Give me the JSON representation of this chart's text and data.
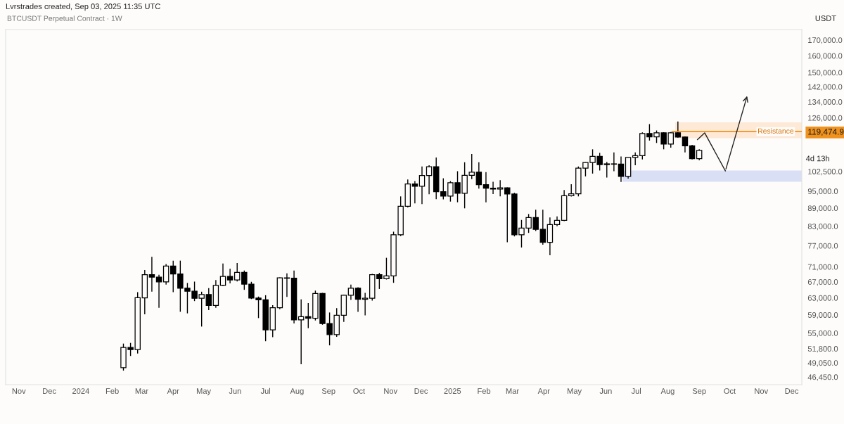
{
  "chart_data": {
    "type": "candlestick",
    "title": "BTCUSDT Perpetual Contract · 1W",
    "ylabel": "USDT",
    "annotations": [
      "Lvrstrades created, Sep 03, 2025 11:35 UTC",
      "4d 13h"
    ],
    "color": "#000000",
    "x": [
      "2024-02-12",
      "2024-02-19",
      "2024-02-26",
      "2024-03-04",
      "2024-03-11",
      "2024-03-18",
      "2024-03-25",
      "2024-04-01",
      "2024-04-08",
      "2024-04-15",
      "2024-04-22",
      "2024-04-29",
      "2024-05-06",
      "2024-05-13",
      "2024-05-20",
      "2024-05-27",
      "2024-06-03",
      "2024-06-10",
      "2024-06-17",
      "2024-06-24",
      "2024-07-01",
      "2024-07-08",
      "2024-07-15",
      "2024-07-22",
      "2024-07-29",
      "2024-08-05",
      "2024-08-12",
      "2024-08-19",
      "2024-08-26",
      "2024-09-02",
      "2024-09-09",
      "2024-09-16",
      "2024-09-23",
      "2024-09-30",
      "2024-10-07",
      "2024-10-14",
      "2024-10-21",
      "2024-10-28",
      "2024-11-04",
      "2024-11-11",
      "2024-11-18",
      "2024-11-25",
      "2024-12-02",
      "2024-12-09",
      "2024-12-16",
      "2024-12-23",
      "2024-12-30",
      "2025-01-06",
      "2025-01-13",
      "2025-01-20",
      "2025-01-27",
      "2025-02-03",
      "2025-02-10",
      "2025-02-17",
      "2025-02-24",
      "2025-03-03",
      "2025-03-10",
      "2025-03-17",
      "2025-03-24",
      "2025-03-31",
      "2025-04-07",
      "2025-04-14",
      "2025-04-21",
      "2025-04-28",
      "2025-05-05",
      "2025-05-12",
      "2025-05-19",
      "2025-05-26",
      "2025-06-02",
      "2025-06-09",
      "2025-06-16",
      "2025-06-23",
      "2025-06-30",
      "2025-07-07",
      "2025-07-14",
      "2025-07-21",
      "2025-07-28",
      "2025-08-04",
      "2025-08-11",
      "2025-08-18",
      "2025-08-25",
      "2025-09-01"
    ],
    "ohlc": [
      [
        48160,
        52820,
        47600,
        52030
      ],
      [
        52030,
        52960,
        50360,
        51620
      ],
      [
        51620,
        64380,
        50850,
        63020
      ],
      [
        62990,
        70100,
        59120,
        68850
      ],
      [
        68850,
        73750,
        64500,
        68220
      ],
      [
        68220,
        68850,
        60640,
        67010
      ],
      [
        67010,
        71770,
        66290,
        71190
      ],
      [
        71190,
        72700,
        64380,
        69040
      ],
      [
        69040,
        72700,
        59700,
        65390
      ],
      [
        65390,
        66710,
        59340,
        64610
      ],
      [
        64610,
        67060,
        62210,
        62880
      ],
      [
        62880,
        64500,
        56400,
        63820
      ],
      [
        63820,
        65390,
        60090,
        61180
      ],
      [
        61180,
        67480,
        60640,
        66070
      ],
      [
        66070,
        71920,
        65900,
        68420
      ],
      [
        68420,
        70470,
        66590,
        67480
      ],
      [
        67480,
        72030,
        67100,
        69480
      ],
      [
        69480,
        69980,
        64970,
        66410
      ],
      [
        66410,
        67010,
        62700,
        62930
      ],
      [
        62930,
        63300,
        58270,
        62540
      ],
      [
        62540,
        63630,
        53310,
        55690
      ],
      [
        55690,
        61250,
        54140,
        60640
      ],
      [
        60640,
        68150,
        60300,
        68030
      ],
      [
        68030,
        69230,
        63210,
        67930
      ],
      [
        67930,
        69980,
        57060,
        57860
      ],
      [
        57860,
        62610,
        48780,
        58590
      ],
      [
        58590,
        61760,
        56030,
        58220
      ],
      [
        58220,
        64770,
        57740,
        64040
      ],
      [
        64040,
        64200,
        56800,
        57060
      ],
      [
        57060,
        59540,
        52460,
        54690
      ],
      [
        54690,
        60530,
        54200,
        58900
      ],
      [
        58900,
        63740,
        57430,
        63620
      ],
      [
        63620,
        66290,
        62480,
        65390
      ],
      [
        65390,
        65600,
        59700,
        62650
      ],
      [
        62650,
        64220,
        58900,
        62900
      ],
      [
        62900,
        69080,
        62310,
        68850
      ],
      [
        68850,
        69340,
        65190,
        67790
      ],
      [
        67790,
        73500,
        67600,
        68550
      ],
      [
        68550,
        81270,
        66750,
        80310
      ],
      [
        80310,
        93100,
        79900,
        89630
      ],
      [
        89630,
        99390,
        89230,
        97680
      ],
      [
        97680,
        98730,
        90610,
        96790
      ],
      [
        96790,
        104460,
        90370,
        100910
      ],
      [
        100910,
        104980,
        93870,
        104370
      ],
      [
        104370,
        108140,
        92110,
        94790
      ],
      [
        94790,
        99820,
        92040,
        93180
      ],
      [
        93180,
        98730,
        91260,
        98130
      ],
      [
        98130,
        102580,
        91010,
        94210
      ],
      [
        94210,
        106180,
        88910,
        100980
      ],
      [
        100980,
        109620,
        99480,
        102210
      ],
      [
        102210,
        106180,
        95940,
        97410
      ],
      [
        97410,
        102210,
        91010,
        96100
      ],
      [
        96100,
        98470,
        93940,
        95750
      ],
      [
        95750,
        99120,
        93100,
        96250
      ],
      [
        96250,
        96400,
        78020,
        93940
      ],
      [
        93940,
        94400,
        79810,
        80310
      ],
      [
        80310,
        85030,
        76470,
        82380
      ],
      [
        82380,
        86990,
        80900,
        85820
      ],
      [
        85820,
        88420,
        81490,
        82010
      ],
      [
        82010,
        88420,
        77310,
        78020
      ],
      [
        78020,
        85820,
        74220,
        83510
      ],
      [
        83510,
        86190,
        82970,
        84880
      ],
      [
        84880,
        95420,
        84650,
        93360
      ],
      [
        93360,
        97590,
        93040,
        94020
      ],
      [
        94020,
        104460,
        93100,
        103820
      ],
      [
        103820,
        106180,
        100560,
        106100
      ],
      [
        106100,
        111600,
        101650,
        108610
      ],
      [
        108610,
        110090,
        102860,
        105230
      ],
      [
        105230,
        106350,
        100090,
        105520
      ],
      [
        105520,
        110300,
        102580,
        105400
      ],
      [
        105400,
        108610,
        98400,
        100560
      ],
      [
        100560,
        108200,
        99670,
        108140
      ],
      [
        108140,
        110300,
        104980,
        108910
      ],
      [
        108910,
        119130,
        107340,
        118600
      ],
      [
        118600,
        122980,
        115430,
        117100
      ],
      [
        117100,
        120000,
        114370,
        118930
      ],
      [
        118930,
        119200,
        111600,
        113870
      ],
      [
        113870,
        119300,
        112320,
        118930
      ],
      [
        118930,
        124220,
        116700,
        117010
      ],
      [
        117010,
        117300,
        110300,
        113120
      ],
      [
        113120,
        113500,
        107300,
        107630
      ],
      [
        107630,
        111600,
        106960,
        111110
      ]
    ],
    "log": true,
    "xlim": [
      "2023-10-19",
      "2025-12-11"
    ],
    "xticks": [
      {
        "value": "2023-11-01",
        "label": "Nov"
      },
      {
        "value": "2023-12-01",
        "label": "Dec"
      },
      {
        "value": "2024-01-01",
        "label": "2024"
      },
      {
        "value": "2024-02-01",
        "label": "Feb"
      },
      {
        "value": "2024-03-01",
        "label": "Mar"
      },
      {
        "value": "2024-04-01",
        "label": "Apr"
      },
      {
        "value": "2024-05-01",
        "label": "May"
      },
      {
        "value": "2024-06-01",
        "label": "Jun"
      },
      {
        "value": "2024-07-01",
        "label": "Jul"
      },
      {
        "value": "2024-08-01",
        "label": "Aug"
      },
      {
        "value": "2024-09-01",
        "label": "Sep"
      },
      {
        "value": "2024-10-01",
        "label": "Oct"
      },
      {
        "value": "2024-11-01",
        "label": "Nov"
      },
      {
        "value": "2024-12-01",
        "label": "Dec"
      },
      {
        "value": "2025-01-01",
        "label": "2025"
      },
      {
        "value": "2025-02-01",
        "label": "Feb"
      },
      {
        "value": "2025-03-01",
        "label": "Mar"
      },
      {
        "value": "2025-04-01",
        "label": "Apr"
      },
      {
        "value": "2025-05-01",
        "label": "May"
      },
      {
        "value": "2025-06-01",
        "label": "Jun"
      },
      {
        "value": "2025-07-01",
        "label": "Jul"
      },
      {
        "value": "2025-08-01",
        "label": "Aug"
      },
      {
        "value": "2025-09-01",
        "label": "Sep"
      },
      {
        "value": "2025-10-01",
        "label": "Oct"
      },
      {
        "value": "2025-11-01",
        "label": "Nov"
      },
      {
        "value": "2025-12-01",
        "label": "Dec"
      }
    ],
    "ylim": [
      45100,
      177000
    ],
    "yticks": [
      {
        "value": 46450,
        "label": "46,450.0"
      },
      {
        "value": 49050,
        "label": "49,050.0"
      },
      {
        "value": 51800,
        "label": "51,800.0"
      },
      {
        "value": 55000,
        "label": "55,000.0"
      },
      {
        "value": 59000,
        "label": "59,000.0"
      },
      {
        "value": 63000,
        "label": "63,000.0"
      },
      {
        "value": 67000,
        "label": "67,000.0"
      },
      {
        "value": 71000,
        "label": "71,000.0"
      },
      {
        "value": 77000,
        "label": "77,000.0"
      },
      {
        "value": 83000,
        "label": "83,000.0"
      },
      {
        "value": 89000,
        "label": "89,000.0"
      },
      {
        "value": 95000,
        "label": "95,000.0"
      },
      {
        "value": 102500,
        "label": "102,500.0"
      },
      {
        "value": 119474.9,
        "label": "119,474.9"
      },
      {
        "value": 126000,
        "label": "126,000.0"
      },
      {
        "value": 134000,
        "label": "134,000.0"
      },
      {
        "value": 142000,
        "label": "142,000.0"
      },
      {
        "value": 150000,
        "label": "150,000.0"
      },
      {
        "value": 160000,
        "label": "160,000.0"
      },
      {
        "value": 170000,
        "label": "170,000.0"
      }
    ],
    "ref_lines": [
      {
        "axis": "y",
        "value": 119474.9,
        "label": "Resistance",
        "color": "#f0921e",
        "line_style": "solid"
      }
    ],
    "bands": [
      {
        "axis": "y",
        "from": 116500,
        "to": 123850,
        "color": "#fde9d6"
      },
      {
        "axis": "y",
        "from": 98500,
        "to": 102860,
        "color": "#d9dff5"
      }
    ],
    "grid": false,
    "legend": false
  }
}
